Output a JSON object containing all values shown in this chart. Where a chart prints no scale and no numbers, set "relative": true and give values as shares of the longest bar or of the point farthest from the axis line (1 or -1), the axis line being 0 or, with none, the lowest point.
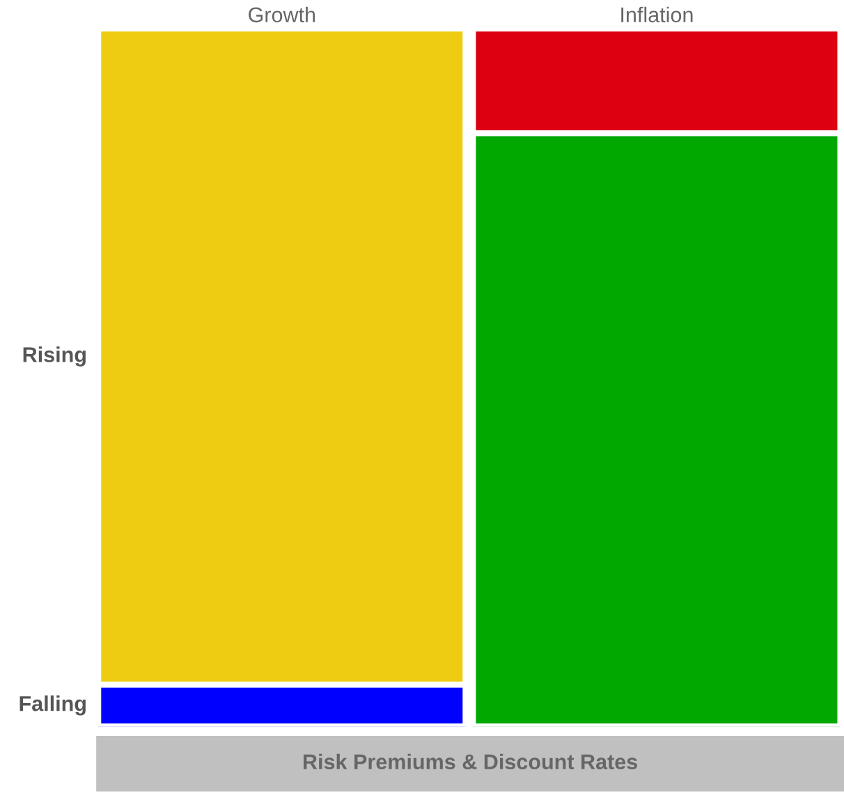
{
  "chart_data": {
    "type": "bar",
    "stacked": true,
    "relative": true,
    "categories": [
      "Growth",
      "Inflation"
    ],
    "series": [
      {
        "colors": [
          "#0000ff",
          "#00a800"
        ],
        "values": [
          0.06,
          0.85
        ]
      },
      {
        "colors": [
          "#eecc11",
          "#dd0011"
        ],
        "values": [
          0.94,
          0.15
        ]
      }
    ],
    "annotations": [
      "Rising",
      "Falling",
      "Risk Premiums & Discount Rates"
    ],
    "grid": false,
    "legend": false
  }
}
